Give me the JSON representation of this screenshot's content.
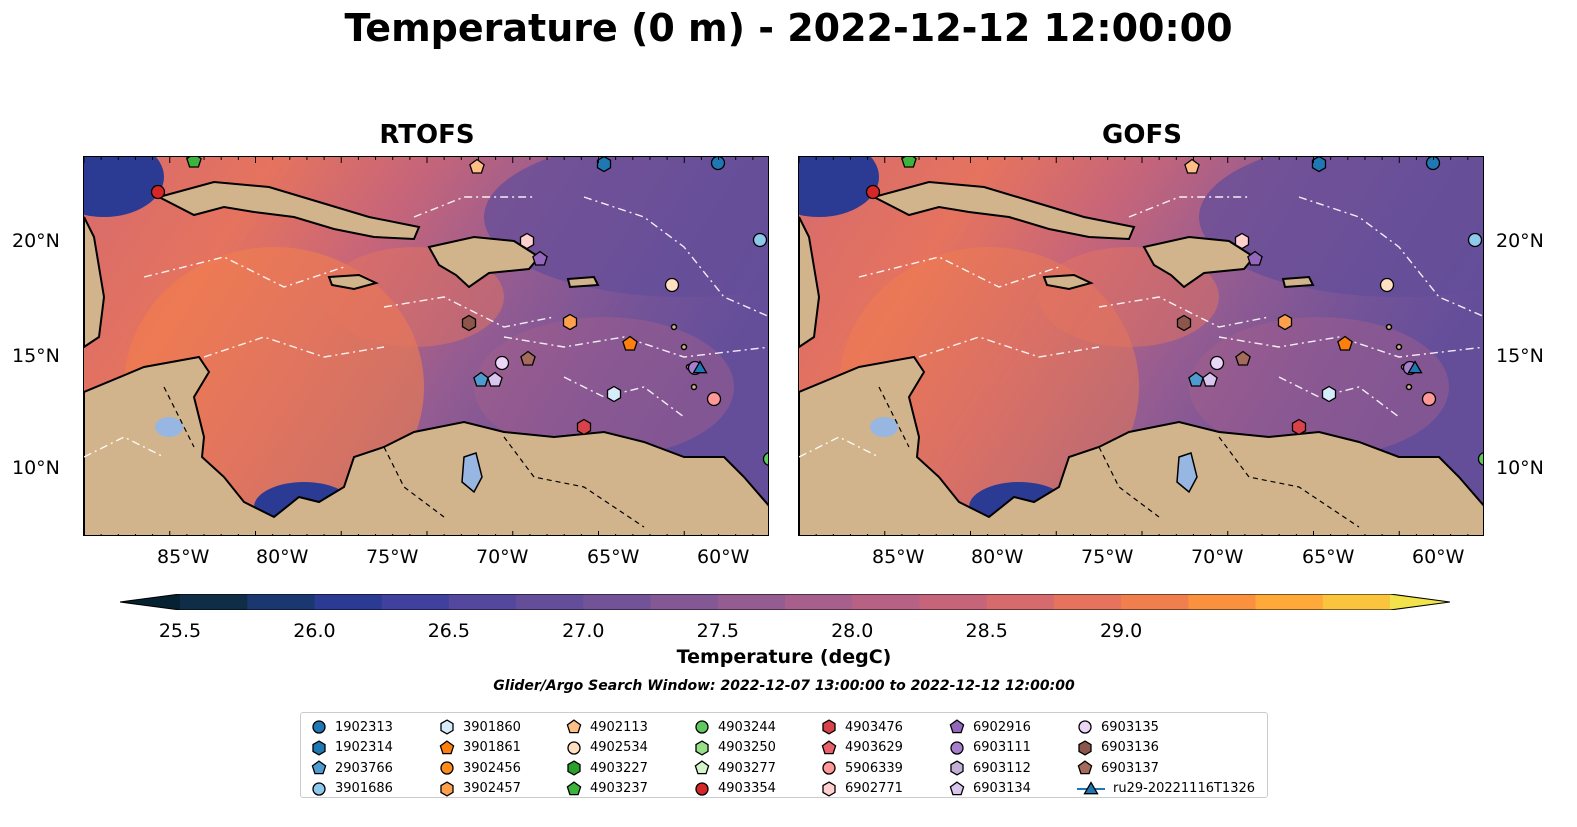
{
  "title": "Temperature (0 m) - 2022-12-12 12:00:00",
  "panels": [
    {
      "title": "RTOFS"
    },
    {
      "title": "GOFS"
    }
  ],
  "x_ticks": [
    "85°W",
    "80°W",
    "75°W",
    "70°W",
    "65°W",
    "60°W"
  ],
  "y_ticks": [
    "20°N",
    "15°N",
    "10°N"
  ],
  "colorbar": {
    "label": "Temperature (degC)",
    "ticks": [
      "25.5",
      "26.0",
      "26.5",
      "27.0",
      "27.5",
      "28.0",
      "28.5",
      "29.0"
    ],
    "colors": [
      "#062232",
      "#0f2d47",
      "#1a3770",
      "#2b3a93",
      "#40419e",
      "#54489e",
      "#644e9a",
      "#735398",
      "#845895",
      "#955c91",
      "#a75f8c",
      "#b76285",
      "#c6657a",
      "#d66b6d",
      "#e5735e",
      "#f17f4d",
      "#fa913f",
      "#fea93a",
      "#fbc43e",
      "#f2e34b"
    ],
    "extend": "both"
  },
  "search_window": "Glider/Argo Search Window: 2022-12-07 13:00:00 to 2022-12-12 12:00:00",
  "colors": {
    "land": "#d2b48c",
    "lake": "#97b6e1"
  },
  "legend": {
    "columns": [
      [
        {
          "label": "1902313",
          "marker": "circle",
          "color": "#1f77b4"
        },
        {
          "label": "1902314",
          "marker": "hexagon",
          "color": "#1f77b4"
        },
        {
          "label": "2903766",
          "marker": "pentagon",
          "color": "#4f9bd0"
        },
        {
          "label": "3901686",
          "marker": "circle",
          "color": "#8ec8ea"
        }
      ],
      [
        {
          "label": "3901860",
          "marker": "hexagon",
          "color": "#d7ecfa"
        },
        {
          "label": "3901861",
          "marker": "pentagon",
          "color": "#ff7f0e"
        },
        {
          "label": "3902456",
          "marker": "circle",
          "color": "#ff8c1a"
        },
        {
          "label": "3902457",
          "marker": "hexagon",
          "color": "#ffa04d"
        }
      ],
      [
        {
          "label": "4902113",
          "marker": "pentagon",
          "color": "#ffbe86"
        },
        {
          "label": "4902534",
          "marker": "circle",
          "color": "#ffe0c0"
        },
        {
          "label": "4903227",
          "marker": "hexagon",
          "color": "#2ca02c"
        },
        {
          "label": "4903237",
          "marker": "pentagon",
          "color": "#3cb43c"
        }
      ],
      [
        {
          "label": "4903244",
          "marker": "circle",
          "color": "#5fc95f"
        },
        {
          "label": "4903250",
          "marker": "hexagon",
          "color": "#98df8a"
        },
        {
          "label": "4903277",
          "marker": "pentagon",
          "color": "#d4f5cc"
        },
        {
          "label": "4903354",
          "marker": "circle",
          "color": "#d62728"
        }
      ],
      [
        {
          "label": "4903476",
          "marker": "hexagon",
          "color": "#d9424a"
        },
        {
          "label": "4903629",
          "marker": "pentagon",
          "color": "#e8606a"
        },
        {
          "label": "5906339",
          "marker": "circle",
          "color": "#ff9896"
        },
        {
          "label": "6902771",
          "marker": "hexagon",
          "color": "#ffd0ce"
        }
      ],
      [
        {
          "label": "6902916",
          "marker": "pentagon",
          "color": "#9467bd"
        },
        {
          "label": "6903111",
          "marker": "circle",
          "color": "#a87fcc"
        },
        {
          "label": "6903112",
          "marker": "hexagon",
          "color": "#c5b0d5"
        },
        {
          "label": "6903134",
          "marker": "pentagon",
          "color": "#d8c6ec"
        }
      ],
      [
        {
          "label": "6903135",
          "marker": "circle",
          "color": "#ecd6f7"
        },
        {
          "label": "6903136",
          "marker": "hexagon",
          "color": "#8c564b"
        },
        {
          "label": "6903137",
          "marker": "pentagon",
          "color": "#a46a5c"
        },
        {
          "label": "ru29-20221116T1326",
          "marker": "triangle-line",
          "color": "#1f77b4"
        }
      ]
    ]
  }
}
